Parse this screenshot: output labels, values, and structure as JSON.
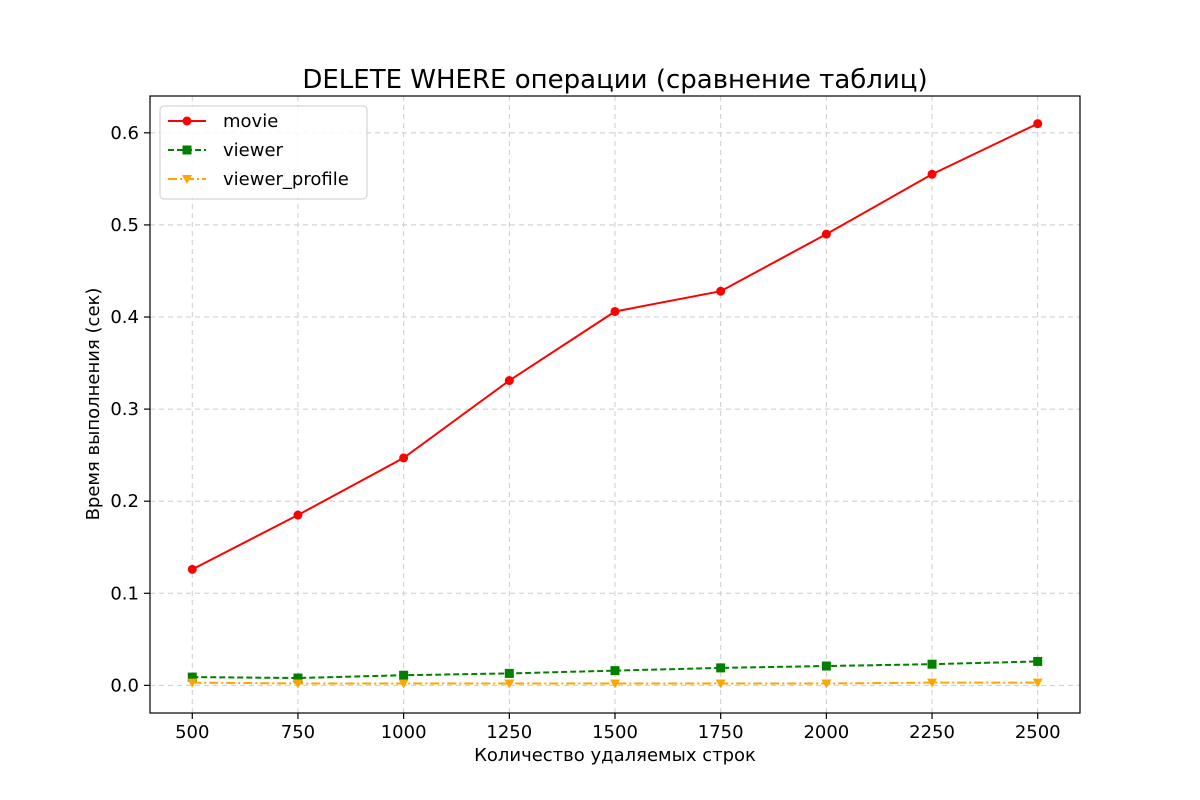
{
  "chart_data": {
    "type": "line",
    "title": "DELETE WHERE операции (сравнение таблиц)",
    "xlabel": "Количество удаляемых строк",
    "ylabel": "Время выполнения (сек)",
    "x": [
      500,
      750,
      1000,
      1250,
      1500,
      1750,
      2000,
      2250,
      2500
    ],
    "xlim": [
      400,
      2600
    ],
    "ylim": [
      -0.03,
      0.64
    ],
    "xticks": [
      500,
      750,
      1000,
      1250,
      1500,
      1750,
      2000,
      2250,
      2500
    ],
    "yticks": [
      0.0,
      0.1,
      0.2,
      0.3,
      0.4,
      0.5,
      0.6
    ],
    "ytick_labels": [
      "0.0",
      "0.1",
      "0.2",
      "0.3",
      "0.4",
      "0.5",
      "0.6"
    ],
    "grid": true,
    "legend_position": "top-left",
    "series": [
      {
        "name": "movie",
        "color": "#ff0000",
        "line_style": "solid",
        "marker": "circle",
        "values": [
          0.126,
          0.185,
          0.247,
          0.331,
          0.406,
          0.428,
          0.49,
          0.555,
          0.61
        ]
      },
      {
        "name": "viewer",
        "color": "#008000",
        "line_style": "dashed",
        "marker": "square",
        "values": [
          0.009,
          0.008,
          0.011,
          0.013,
          0.016,
          0.019,
          0.021,
          0.023,
          0.026
        ]
      },
      {
        "name": "viewer_profile",
        "color": "#ffa500",
        "line_style": "dashdot",
        "marker": "triangle-down",
        "values": [
          0.003,
          0.002,
          0.002,
          0.002,
          0.002,
          0.002,
          0.002,
          0.003,
          0.003
        ]
      }
    ]
  }
}
